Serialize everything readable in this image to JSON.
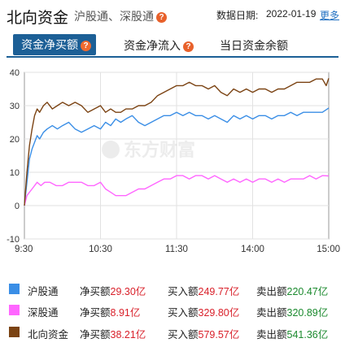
{
  "header": {
    "title": "北向资金",
    "subtitle": "沪股通、深股通",
    "date_label": "数据日期:",
    "date_value": "2022-01-19",
    "more_label": "更多"
  },
  "tabs": [
    {
      "label": "资金净买额",
      "active": true,
      "help": true
    },
    {
      "label": "资金净流入",
      "active": false,
      "help": true
    },
    {
      "label": "当日资金余额",
      "active": false,
      "help": false
    }
  ],
  "watermark": "东方财富",
  "chart_data": {
    "type": "line",
    "ylim": [
      -10,
      40
    ],
    "yticks": [
      -10,
      0,
      10,
      20,
      30,
      40
    ],
    "xticks": [
      "9:30",
      "10:30",
      "11:30",
      "14:00",
      "15:00"
    ],
    "x_unit": "trading minutes from 9:30 (240 = 15:00)",
    "grid": true,
    "series": [
      {
        "name": "沪股通",
        "color": "#3a8ee6",
        "points": [
          [
            0,
            0
          ],
          [
            2,
            7
          ],
          [
            4,
            14
          ],
          [
            6,
            17
          ],
          [
            8,
            19
          ],
          [
            10,
            21
          ],
          [
            12,
            20
          ],
          [
            15,
            22
          ],
          [
            18,
            23
          ],
          [
            22,
            24
          ],
          [
            26,
            23
          ],
          [
            30,
            24
          ],
          [
            35,
            25
          ],
          [
            40,
            23
          ],
          [
            45,
            22
          ],
          [
            50,
            23
          ],
          [
            55,
            24
          ],
          [
            60,
            23
          ],
          [
            64,
            25
          ],
          [
            68,
            24
          ],
          [
            72,
            26
          ],
          [
            76,
            25
          ],
          [
            80,
            26
          ],
          [
            85,
            27
          ],
          [
            90,
            25
          ],
          [
            95,
            24
          ],
          [
            100,
            25
          ],
          [
            105,
            26
          ],
          [
            110,
            27
          ],
          [
            115,
            27
          ],
          [
            120,
            28
          ],
          [
            125,
            27
          ],
          [
            130,
            28
          ],
          [
            135,
            27
          ],
          [
            140,
            27
          ],
          [
            145,
            26
          ],
          [
            150,
            27
          ],
          [
            155,
            26
          ],
          [
            160,
            25
          ],
          [
            165,
            27
          ],
          [
            170,
            26
          ],
          [
            175,
            27
          ],
          [
            180,
            26
          ],
          [
            185,
            27
          ],
          [
            190,
            27
          ],
          [
            195,
            26
          ],
          [
            200,
            27
          ],
          [
            205,
            27
          ],
          [
            210,
            28
          ],
          [
            215,
            27
          ],
          [
            220,
            28
          ],
          [
            225,
            28
          ],
          [
            230,
            28
          ],
          [
            235,
            28
          ],
          [
            240,
            29.3
          ]
        ]
      },
      {
        "name": "深股通",
        "color": "#ff66ff",
        "points": [
          [
            0,
            0
          ],
          [
            2,
            3
          ],
          [
            4,
            4
          ],
          [
            6,
            5
          ],
          [
            8,
            6
          ],
          [
            10,
            7
          ],
          [
            13,
            6
          ],
          [
            16,
            7
          ],
          [
            20,
            7
          ],
          [
            25,
            6
          ],
          [
            30,
            6
          ],
          [
            35,
            7
          ],
          [
            40,
            7
          ],
          [
            45,
            7
          ],
          [
            50,
            6
          ],
          [
            55,
            6
          ],
          [
            60,
            7
          ],
          [
            64,
            5
          ],
          [
            68,
            4
          ],
          [
            72,
            3
          ],
          [
            76,
            3
          ],
          [
            80,
            3
          ],
          [
            85,
            4
          ],
          [
            90,
            5
          ],
          [
            95,
            5
          ],
          [
            100,
            6
          ],
          [
            105,
            7
          ],
          [
            110,
            8
          ],
          [
            115,
            8
          ],
          [
            120,
            9
          ],
          [
            125,
            9
          ],
          [
            130,
            8
          ],
          [
            135,
            9
          ],
          [
            140,
            9
          ],
          [
            145,
            8
          ],
          [
            150,
            9
          ],
          [
            155,
            8
          ],
          [
            160,
            7
          ],
          [
            165,
            8
          ],
          [
            170,
            7
          ],
          [
            175,
            8
          ],
          [
            180,
            7
          ],
          [
            185,
            8
          ],
          [
            190,
            8
          ],
          [
            195,
            7
          ],
          [
            200,
            8
          ],
          [
            205,
            7
          ],
          [
            210,
            8
          ],
          [
            215,
            8
          ],
          [
            220,
            8
          ],
          [
            225,
            9
          ],
          [
            230,
            8
          ],
          [
            235,
            9
          ],
          [
            240,
            8.9
          ]
        ]
      },
      {
        "name": "北向资金",
        "color": "#7b4313",
        "points": [
          [
            0,
            0
          ],
          [
            2,
            10
          ],
          [
            4,
            18
          ],
          [
            6,
            23
          ],
          [
            8,
            27
          ],
          [
            10,
            29
          ],
          [
            12,
            28
          ],
          [
            15,
            30
          ],
          [
            18,
            31
          ],
          [
            22,
            29
          ],
          [
            26,
            30
          ],
          [
            30,
            31
          ],
          [
            35,
            30
          ],
          [
            40,
            31
          ],
          [
            45,
            30
          ],
          [
            50,
            28
          ],
          [
            55,
            29
          ],
          [
            60,
            30
          ],
          [
            64,
            28
          ],
          [
            68,
            29
          ],
          [
            72,
            28
          ],
          [
            76,
            28
          ],
          [
            80,
            29
          ],
          [
            85,
            29
          ],
          [
            90,
            30
          ],
          [
            95,
            30
          ],
          [
            100,
            31
          ],
          [
            105,
            33
          ],
          [
            110,
            34
          ],
          [
            115,
            35
          ],
          [
            120,
            36
          ],
          [
            125,
            36
          ],
          [
            130,
            37
          ],
          [
            135,
            36
          ],
          [
            140,
            36
          ],
          [
            145,
            35
          ],
          [
            150,
            36
          ],
          [
            155,
            34
          ],
          [
            160,
            33
          ],
          [
            165,
            35
          ],
          [
            170,
            34
          ],
          [
            175,
            35
          ],
          [
            180,
            34
          ],
          [
            185,
            35
          ],
          [
            190,
            35
          ],
          [
            195,
            34
          ],
          [
            200,
            35
          ],
          [
            205,
            35
          ],
          [
            210,
            36
          ],
          [
            215,
            37
          ],
          [
            220,
            37
          ],
          [
            225,
            37
          ],
          [
            230,
            38
          ],
          [
            235,
            38
          ],
          [
            238,
            36
          ],
          [
            240,
            38.21
          ]
        ]
      }
    ]
  },
  "legend": [
    {
      "name": "沪股通",
      "color": "#3a8ee6",
      "net_label": "净买额",
      "net_value": "29.30亿",
      "buy_label": "买入额",
      "buy_value": "249.77亿",
      "sell_label": "卖出额",
      "sell_value": "220.47亿"
    },
    {
      "name": "深股通",
      "color": "#ff66ff",
      "net_label": "净买额",
      "net_value": "8.91亿",
      "buy_label": "买入额",
      "buy_value": "329.80亿",
      "sell_label": "卖出额",
      "sell_value": "320.89亿"
    },
    {
      "name": "北向资金",
      "color": "#7b4313",
      "net_label": "净买额",
      "net_value": "38.21亿",
      "buy_label": "买入额",
      "buy_value": "579.57亿",
      "sell_label": "卖出额",
      "sell_value": "541.36亿"
    }
  ]
}
